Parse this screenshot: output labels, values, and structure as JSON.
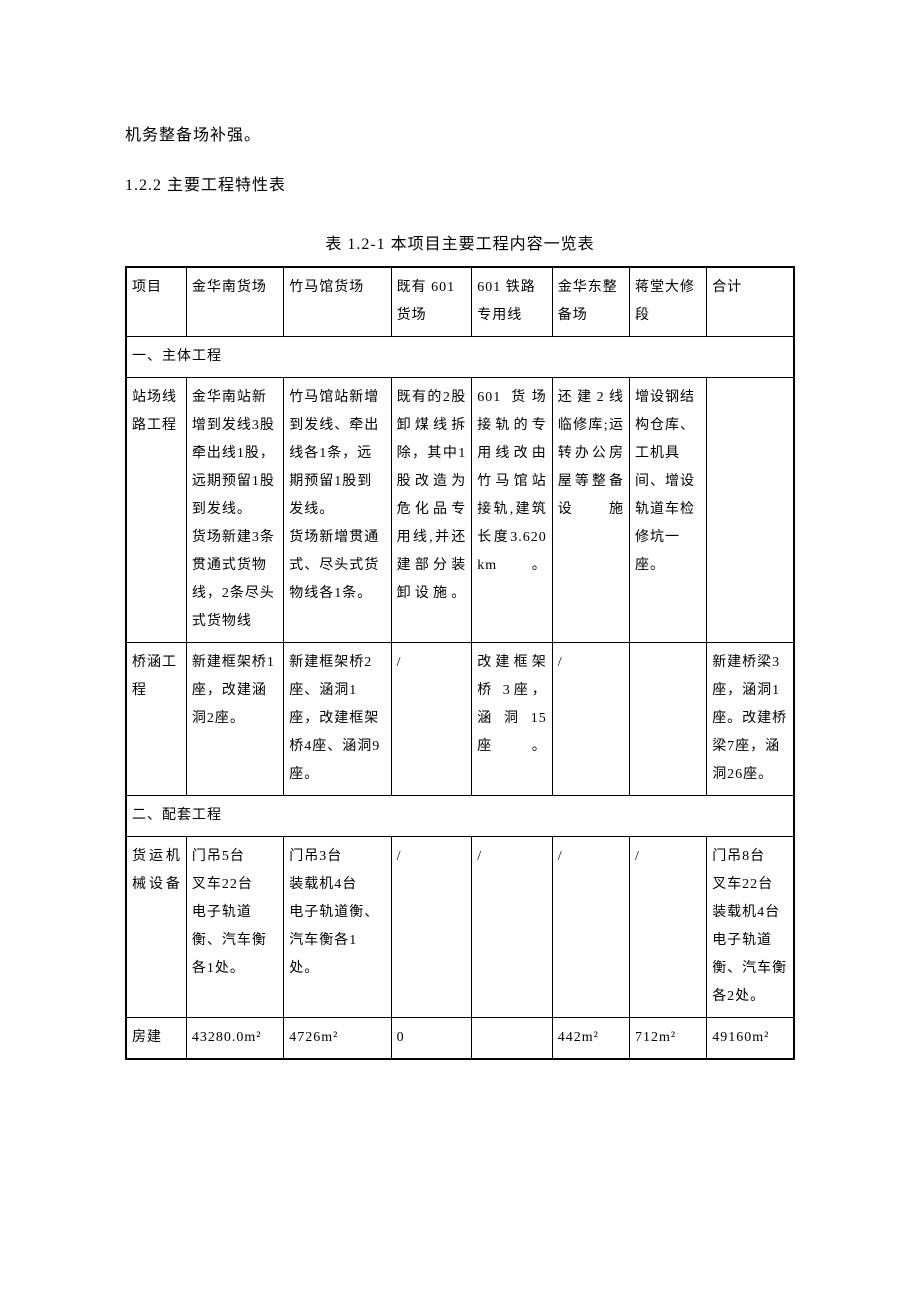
{
  "para1": "机务整备场补强。",
  "heading": "1.2.2 主要工程特性表",
  "caption": "表 1.2-1 本项目主要工程内容一览表",
  "table": {
    "header": [
      "项目",
      "金华南货场",
      "竹马馆货场",
      "既有 601货场",
      "601 铁路专用线",
      "金华东整备场",
      "蒋堂大修段",
      "合计"
    ],
    "section1": "一、主体工程",
    "rows1": [
      {
        "label": "站场线路工程",
        "cells": [
          "金华南站新增到发线3股牵出线1股，远期预留1股到发线。\n货场新建3条贯通式货物线，2条尽头式货物线",
          "竹马馆站新增到发线、牵出线各1条，远期预留1股到发线。\n货场新增贯通式、尽头式货物线各1条。",
          "既有的2股卸煤线拆除，其中1股改造为危化品专用线,并还建部分装卸设施。",
          "601 货场接轨的专用线改由竹马馆站接轨,建筑长度3.620km。",
          "还建2线临修库;运转办公房屋等整备设施",
          "增设钢结构仓库、工机具间、增设轨道车检修坑一座。",
          ""
        ]
      },
      {
        "label": "桥涵工程",
        "cells": [
          "新建框架桥1 座，改建涵洞2座。",
          "新建框架桥2座、涵洞1座，改建框架桥4座、涵洞9座。",
          "/",
          "改建框架桥 3座，涵洞15座。",
          "/",
          "",
          "新建桥梁3座，涵洞1座。改建桥梁7座，涵洞26座。"
        ]
      }
    ],
    "section2": "二、配套工程",
    "rows2": [
      {
        "label": "货运机械设备",
        "cells": [
          "门吊5台\n叉车22台\n电子轨道衡、汽车衡各1处。",
          "门吊3台\n装载机4台\n电子轨道衡、汽车衡各1处。",
          "/",
          "/",
          "/",
          "/",
          "门吊8台\n叉车22台\n装载机4台 电子轨道衡、汽车衡各2处。"
        ]
      },
      {
        "label": "房建",
        "cells": [
          "43280.0m²",
          "4726m²",
          "0",
          "",
          "442m²",
          "712m²",
          "49160m²"
        ]
      }
    ]
  }
}
